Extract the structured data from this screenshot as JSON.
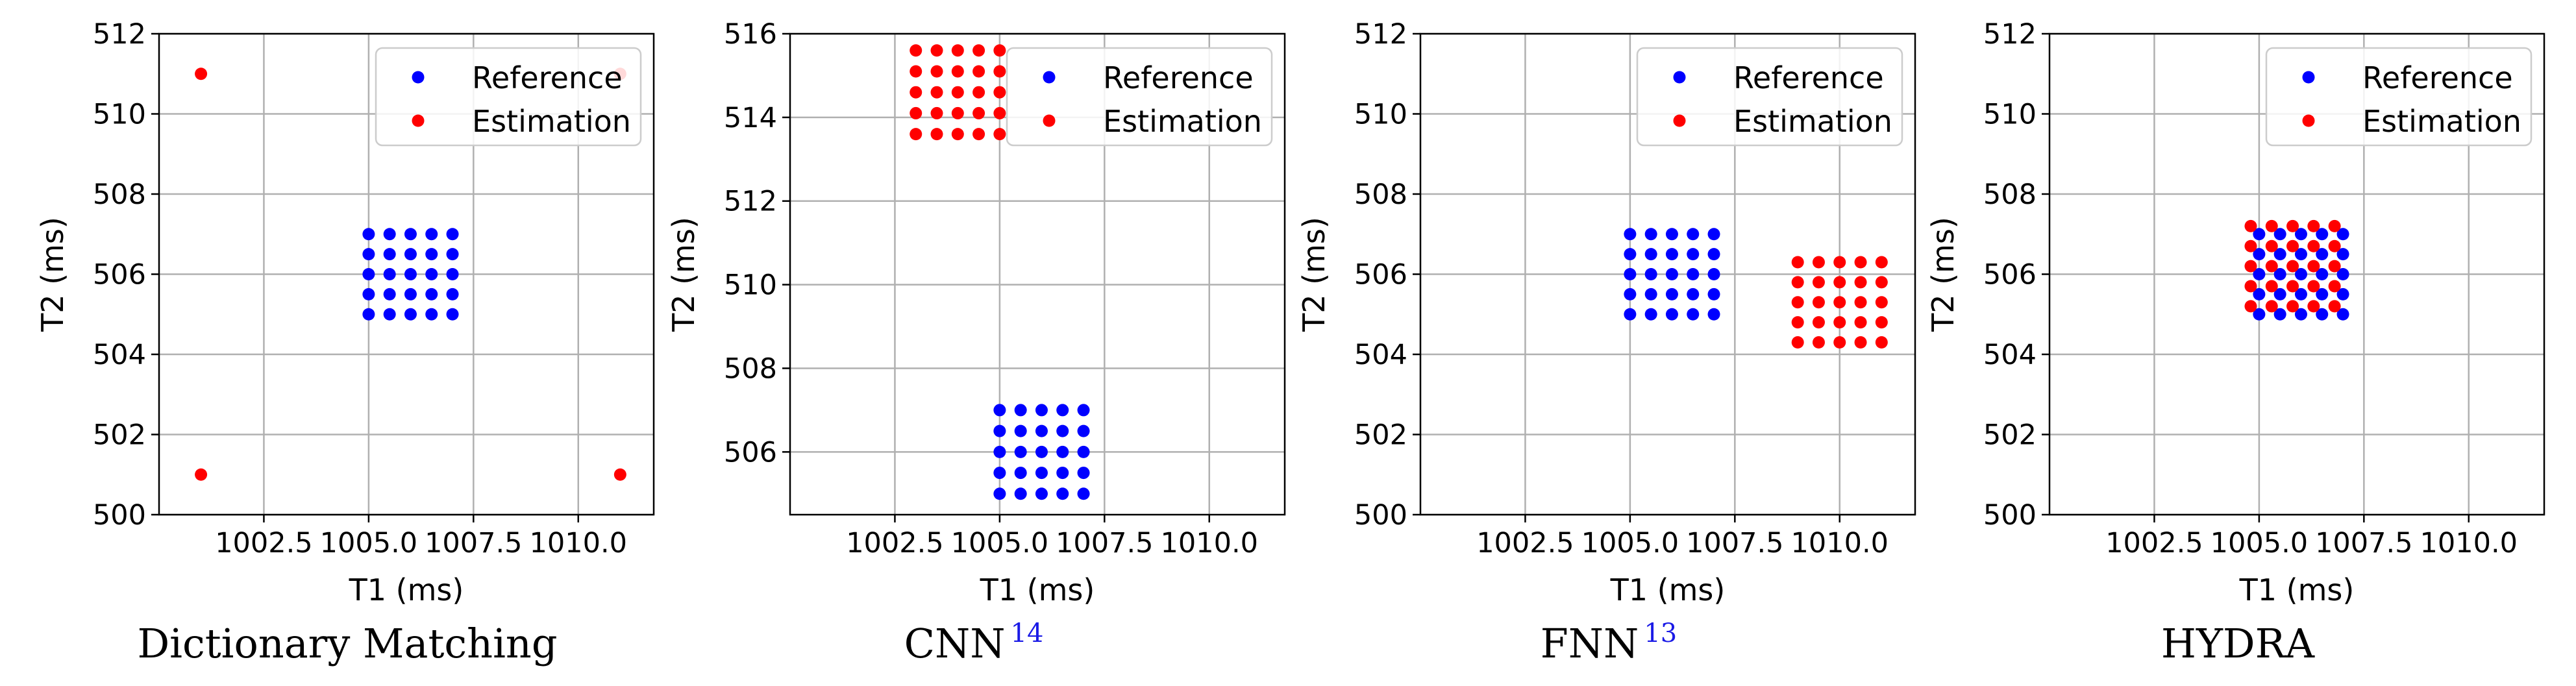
{
  "colors": {
    "reference": "#0000ff",
    "estimation": "#ff0000",
    "grid": "#b0b0b0",
    "citation": "#1a1ae6"
  },
  "legend": {
    "placement": "top-right",
    "entries": [
      "Reference",
      "Estimation"
    ]
  },
  "chart_data": [
    {
      "type": "scatter",
      "caption": "Dictionary Matching",
      "caption_ref": "",
      "xlabel": "T1 (ms)",
      "ylabel": "T2 (ms)",
      "xlim": [
        1000.0,
        1011.8
      ],
      "ylim": [
        500,
        512
      ],
      "xticks": [
        1002.5,
        1005.0,
        1007.5,
        1010.0
      ],
      "xtick_labels": [
        "1002.5",
        "1005.0",
        "1007.5",
        "1010.0"
      ],
      "yticks": [
        500,
        502,
        504,
        506,
        508,
        510,
        512
      ],
      "ytick_labels": [
        "500",
        "502",
        "504",
        "506",
        "508",
        "510",
        "512"
      ],
      "grid": true,
      "series": [
        {
          "name": "Reference",
          "x": [
            1005.0,
            1005.5,
            1006.0,
            1006.5,
            1007.0
          ],
          "y": [
            505.0,
            505.5,
            506.0,
            506.5,
            507.0
          ]
        },
        {
          "name": "Estimation",
          "points": [
            [
              1001.0,
              511.0
            ],
            [
              1011.0,
              511.0
            ],
            [
              1001.0,
              501.0
            ],
            [
              1011.0,
              501.0
            ]
          ]
        }
      ]
    },
    {
      "type": "scatter",
      "caption": "CNN",
      "caption_ref": "14",
      "xlabel": "T1 (ms)",
      "ylabel": "T2 (ms)",
      "xlim": [
        1000.0,
        1011.8
      ],
      "ylim": [
        504.5,
        516
      ],
      "xticks": [
        1002.5,
        1005.0,
        1007.5,
        1010.0
      ],
      "xtick_labels": [
        "1002.5",
        "1005.0",
        "1007.5",
        "1010.0"
      ],
      "yticks": [
        506,
        508,
        510,
        512,
        514,
        516
      ],
      "ytick_labels": [
        "506",
        "508",
        "510",
        "512",
        "514",
        "516"
      ],
      "grid": true,
      "series": [
        {
          "name": "Reference",
          "x": [
            1005.0,
            1005.5,
            1006.0,
            1006.5,
            1007.0
          ],
          "y": [
            505.0,
            505.5,
            506.0,
            506.5,
            507.0
          ]
        },
        {
          "name": "Estimation",
          "x": [
            1003.0,
            1003.5,
            1004.0,
            1004.5,
            1005.0
          ],
          "y": [
            513.6,
            514.1,
            514.6,
            515.1,
            515.6
          ]
        }
      ]
    },
    {
      "type": "scatter",
      "caption": "FNN",
      "caption_ref": "13",
      "xlabel": "T1 (ms)",
      "ylabel": "T2 (ms)",
      "xlim": [
        1000.0,
        1011.8
      ],
      "ylim": [
        500,
        512
      ],
      "xticks": [
        1002.5,
        1005.0,
        1007.5,
        1010.0
      ],
      "xtick_labels": [
        "1002.5",
        "1005.0",
        "1007.5",
        "1010.0"
      ],
      "yticks": [
        500,
        502,
        504,
        506,
        508,
        510,
        512
      ],
      "ytick_labels": [
        "500",
        "502",
        "504",
        "506",
        "508",
        "510",
        "512"
      ],
      "grid": true,
      "series": [
        {
          "name": "Reference",
          "x": [
            1005.0,
            1005.5,
            1006.0,
            1006.5,
            1007.0
          ],
          "y": [
            505.0,
            505.5,
            506.0,
            506.5,
            507.0
          ]
        },
        {
          "name": "Estimation",
          "x": [
            1009.0,
            1009.5,
            1010.0,
            1010.5,
            1011.0
          ],
          "y": [
            504.3,
            504.8,
            505.3,
            505.8,
            506.3
          ]
        }
      ]
    },
    {
      "type": "scatter",
      "caption": "HYDRA",
      "caption_ref": "",
      "xlabel": "T1 (ms)",
      "ylabel": "T2 (ms)",
      "xlim": [
        1000.0,
        1011.8
      ],
      "ylim": [
        500,
        512
      ],
      "xticks": [
        1002.5,
        1005.0,
        1007.5,
        1010.0
      ],
      "xtick_labels": [
        "1002.5",
        "1005.0",
        "1007.5",
        "1010.0"
      ],
      "yticks": [
        500,
        502,
        504,
        506,
        508,
        510,
        512
      ],
      "ytick_labels": [
        "500",
        "502",
        "504",
        "506",
        "508",
        "510",
        "512"
      ],
      "grid": true,
      "series": [
        {
          "name": "Reference",
          "x": [
            1005.0,
            1005.5,
            1006.0,
            1006.5,
            1007.0
          ],
          "y": [
            505.0,
            505.5,
            506.0,
            506.5,
            507.0
          ]
        },
        {
          "name": "Estimation",
          "x": [
            1004.8,
            1005.3,
            1005.8,
            1006.3,
            1006.8
          ],
          "y": [
            505.2,
            505.7,
            506.2,
            506.7,
            507.2
          ]
        }
      ]
    }
  ]
}
